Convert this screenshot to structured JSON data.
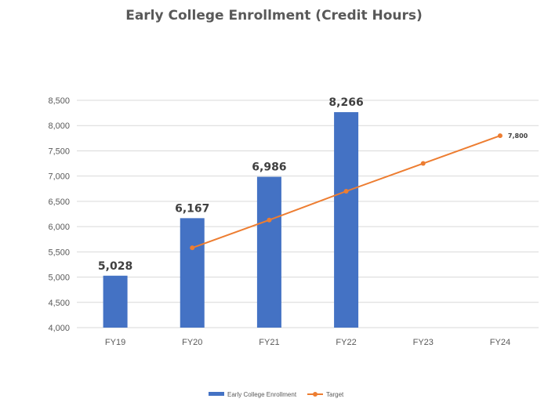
{
  "chart_data": {
    "type": "bar",
    "title": "Early College Enrollment (Credit Hours)",
    "categories": [
      "FY19",
      "FY20",
      "FY21",
      "FY22",
      "FY23",
      "FY24"
    ],
    "ylim": [
      4000,
      8500
    ],
    "yticks": [
      4000,
      4500,
      5000,
      5500,
      6000,
      6500,
      7000,
      7500,
      8000,
      8500
    ],
    "grid": true,
    "legend_position": "bottom",
    "series": [
      {
        "name": "Early College Enrollment",
        "kind": "bar",
        "color": "#4472C4",
        "values": [
          5028,
          6167,
          6986,
          8266,
          null,
          null
        ],
        "labels": [
          "5,028",
          "6,167",
          "6,986",
          "8,266",
          "",
          ""
        ]
      },
      {
        "name": "Target",
        "kind": "line",
        "color": "#ED7D31",
        "values": [
          null,
          5580,
          6130,
          6700,
          7250,
          7800
        ],
        "labels": [
          "",
          "",
          "",
          "",
          "",
          "7,800"
        ]
      }
    ]
  }
}
